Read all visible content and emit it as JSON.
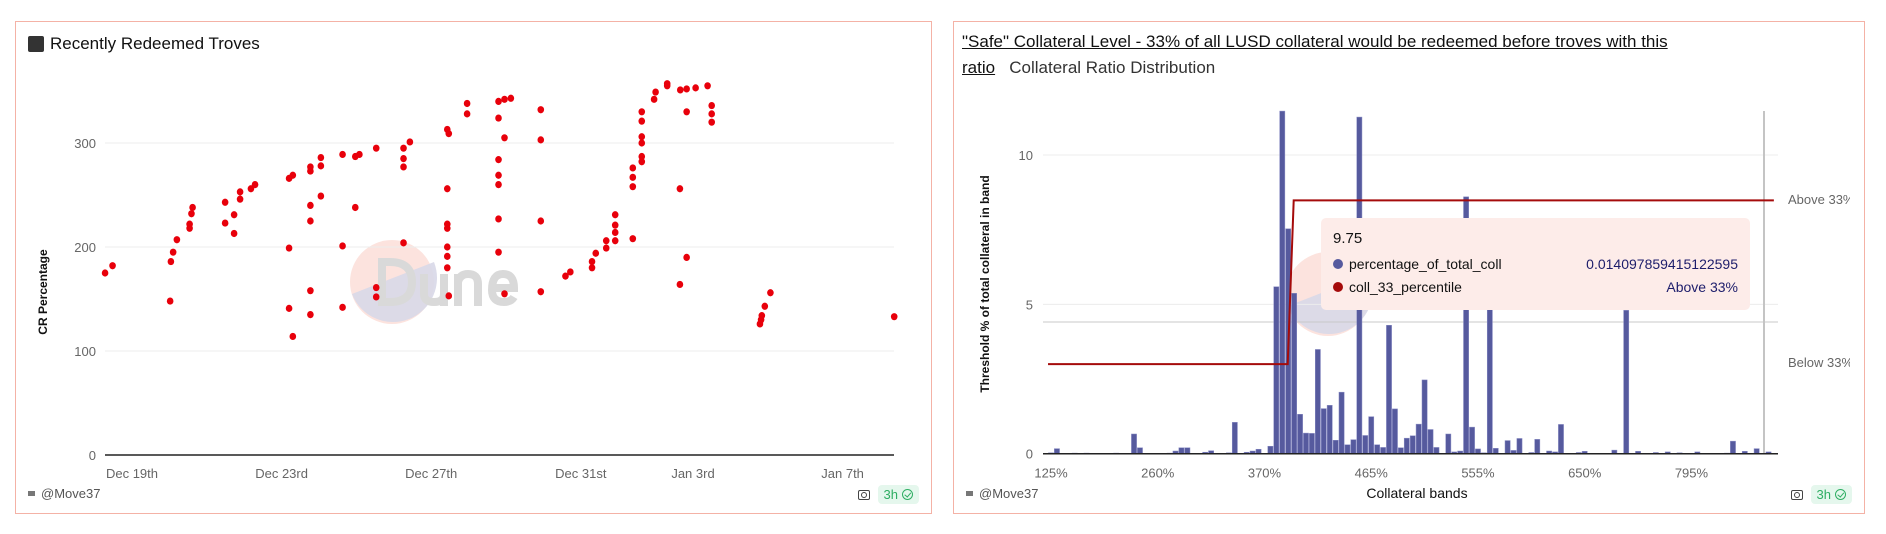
{
  "colors": {
    "dots": "#e8000b",
    "bars": "#565a9e",
    "step_line": "#a50b0b",
    "border": "#f4b2a6",
    "badge_bg": "#e5f7ed",
    "badge_text": "#2fae63"
  },
  "left_panel": {
    "title": "Recently Redeemed Troves",
    "title_icon": "money-emoji-icon",
    "footer_user": "@Move37",
    "freshness": "3h"
  },
  "right_panel": {
    "title_link": "\"Safe\" Collateral Level - 33% of all LUSD collateral would be redeemed before troves with this ratio",
    "title_rest": "Collateral Ratio Distribution",
    "footer_user": "@Move37",
    "freshness": "3h",
    "tooltip": {
      "header": "9.75",
      "rows": [
        {
          "name": "percentage_of_total_coll",
          "value": "0.014097859415122595",
          "color": "#565a9e"
        },
        {
          "name": "coll_33_percentile",
          "value": "Above 33%",
          "color": "#a50b0b"
        }
      ]
    }
  },
  "chart_data": [
    {
      "type": "scatter",
      "title": "Recently Redeemed Troves",
      "xlabel": "",
      "ylabel": "CR Percentage",
      "x_unit": "days since Dec 19th",
      "ylim": [
        0,
        360
      ],
      "yticks": [
        "0",
        "100",
        "200",
        "300"
      ],
      "ytick_values": [
        0,
        100,
        200,
        300
      ],
      "xticks": [
        {
          "day": 0,
          "label": "Dec 19th"
        },
        {
          "day": 4,
          "label": "Dec 23rd"
        },
        {
          "day": 8,
          "label": "Dec 27th"
        },
        {
          "day": 12,
          "label": "Dec 31st"
        },
        {
          "day": 15,
          "label": "Jan 3rd"
        },
        {
          "day": 19,
          "label": "Jan 7th"
        }
      ],
      "xlim": [
        -0.4,
        20.7
      ],
      "grid": true,
      "points": [
        [
          -0.72,
          175
        ],
        [
          -0.52,
          182
        ],
        [
          1.02,
          148
        ],
        [
          1.04,
          186
        ],
        [
          1.1,
          195
        ],
        [
          1.2,
          207
        ],
        [
          1.54,
          218
        ],
        [
          1.54,
          222
        ],
        [
          1.59,
          232
        ],
        [
          1.62,
          238
        ],
        [
          2.49,
          223
        ],
        [
          2.49,
          243
        ],
        [
          2.73,
          213
        ],
        [
          2.73,
          231
        ],
        [
          2.89,
          246
        ],
        [
          2.89,
          253
        ],
        [
          3.18,
          256
        ],
        [
          3.29,
          260
        ],
        [
          4.2,
          199
        ],
        [
          4.2,
          141
        ],
        [
          4.2,
          266
        ],
        [
          4.3,
          269
        ],
        [
          4.3,
          114
        ],
        [
          4.77,
          273
        ],
        [
          4.77,
          277
        ],
        [
          4.77,
          240
        ],
        [
          4.77,
          225
        ],
        [
          4.77,
          158
        ],
        [
          4.77,
          135
        ],
        [
          5.05,
          278
        ],
        [
          5.05,
          286
        ],
        [
          5.05,
          249
        ],
        [
          5.63,
          289
        ],
        [
          5.63,
          201
        ],
        [
          5.63,
          142
        ],
        [
          5.97,
          287
        ],
        [
          6.08,
          289
        ],
        [
          5.97,
          238
        ],
        [
          6.53,
          295
        ],
        [
          6.53,
          161
        ],
        [
          6.53,
          152
        ],
        [
          7.26,
          295
        ],
        [
          7.26,
          285
        ],
        [
          7.26,
          277
        ],
        [
          7.26,
          204
        ],
        [
          7.43,
          301
        ],
        [
          8.43,
          313
        ],
        [
          8.47,
          309
        ],
        [
          8.43,
          256
        ],
        [
          8.43,
          222
        ],
        [
          8.43,
          218
        ],
        [
          8.43,
          200
        ],
        [
          8.43,
          191
        ],
        [
          8.43,
          180
        ],
        [
          8.47,
          153
        ],
        [
          8.96,
          338
        ],
        [
          8.96,
          328
        ],
        [
          9.8,
          340
        ],
        [
          9.96,
          342
        ],
        [
          10.13,
          343
        ],
        [
          9.8,
          324
        ],
        [
          9.96,
          305
        ],
        [
          9.8,
          284
        ],
        [
          9.8,
          269
        ],
        [
          9.8,
          260
        ],
        [
          9.8,
          227
        ],
        [
          9.8,
          195
        ],
        [
          9.96,
          155
        ],
        [
          10.93,
          332
        ],
        [
          10.93,
          303
        ],
        [
          10.93,
          225
        ],
        [
          10.93,
          157
        ],
        [
          11.59,
          172
        ],
        [
          11.72,
          176
        ],
        [
          12.3,
          180
        ],
        [
          12.3,
          186
        ],
        [
          12.4,
          194
        ],
        [
          12.68,
          199
        ],
        [
          12.68,
          206
        ],
        [
          12.92,
          206
        ],
        [
          12.92,
          214
        ],
        [
          12.92,
          221
        ],
        [
          12.92,
          231
        ],
        [
          13.39,
          208
        ],
        [
          13.39,
          258
        ],
        [
          13.39,
          267
        ],
        [
          13.39,
          276
        ],
        [
          13.63,
          282
        ],
        [
          13.63,
          287
        ],
        [
          13.63,
          300
        ],
        [
          13.63,
          306
        ],
        [
          13.63,
          321
        ],
        [
          13.63,
          330
        ],
        [
          13.96,
          342
        ],
        [
          14.0,
          349
        ],
        [
          14.31,
          355
        ],
        [
          14.31,
          357
        ],
        [
          14.66,
          351
        ],
        [
          14.83,
          352
        ],
        [
          15.07,
          353
        ],
        [
          15.39,
          355
        ],
        [
          14.65,
          256
        ],
        [
          14.83,
          330
        ],
        [
          14.83,
          190
        ],
        [
          14.65,
          164
        ],
        [
          15.5,
          336
        ],
        [
          15.5,
          328
        ],
        [
          15.5,
          320
        ],
        [
          16.79,
          126
        ],
        [
          16.82,
          130
        ],
        [
          16.84,
          134
        ],
        [
          16.92,
          143
        ],
        [
          17.07,
          156
        ],
        [
          20.38,
          133
        ]
      ]
    },
    {
      "type": "bar",
      "title": "\"Safe\" Collateral Level - 33% of all LUSD collateral would be redeemed before troves with this ratio",
      "xlabel": "Collateral bands",
      "ylabel": "Threshold % of total collateral in band",
      "ylim": [
        0,
        12
      ],
      "yticks": [
        "0",
        "5",
        "10"
      ],
      "ytick_values": [
        0,
        5,
        10
      ],
      "reference_line": 4.41,
      "grid": true,
      "xticks": [
        {
          "index": 0,
          "label": "125%"
        },
        {
          "index": 18,
          "label": "260%"
        },
        {
          "index": 36,
          "label": "370%"
        },
        {
          "index": 54,
          "label": "465%"
        },
        {
          "index": 72,
          "label": "555%"
        },
        {
          "index": 90,
          "label": "650%"
        },
        {
          "index": 108,
          "label": "795%"
        }
      ],
      "series": [
        {
          "name": "percentage_of_total_coll",
          "values": [
            0.03,
            0.17,
            0.01,
            0.01,
            0.02,
            0.01,
            0.02,
            0.01,
            0.01,
            0.01,
            0.01,
            0.02,
            0.01,
            0.01,
            0.66,
            0.2,
            0.01,
            0.01,
            0.01,
            0.01,
            0.02,
            0.09,
            0.2,
            0.2,
            0.01,
            0.01,
            0.05,
            0.1,
            0.01,
            0.01,
            0.03,
            1.05,
            0.01,
            0.05,
            0.09,
            0.15,
            0.01,
            0.25,
            5.59,
            11.47,
            7.53,
            5.37,
            1.32,
            0.69,
            0.68,
            3.49,
            1.51,
            1.62,
            0.45,
            2.06,
            0.3,
            0.47,
            11.27,
            0.61,
            1.24,
            0.3,
            0.21,
            4.3,
            1.5,
            0.2,
            0.52,
            0.6,
            0.99,
            2.47,
            0.81,
            0.21,
            0.01,
            0.66,
            0.06,
            0.09,
            8.6,
            0.89,
            0.16,
            0.03,
            5.0,
            0.18,
            0.01,
            0.44,
            0.11,
            0.51,
            0.01,
            0.04,
            0.48,
            0.01,
            0.09,
            0.06,
            0.98,
            0.01,
            0.01,
            0.04,
            0.08,
            0.01,
            0.01,
            0.01,
            0.01,
            0.12,
            0.01,
            4.8,
            0.01,
            0.08,
            0.01,
            0.01,
            0.04,
            0.01,
            0.06,
            0.01,
            0.03,
            0.01,
            0.01,
            0.06,
            0.01,
            0.01,
            0.01,
            0.01,
            0.02,
            0.42,
            0.01,
            0.08,
            0.01,
            0.17,
            0.01,
            0.06
          ]
        },
        {
          "name": "coll_33_percentile",
          "type": "step",
          "step_after_index": 40,
          "levels": [
            "Below 33%",
            "Above 33%"
          ],
          "level_values": [
            3.0,
            8.48
          ]
        }
      ],
      "right_axis_labels": [
        "Above 33%",
        "Below 33%"
      ]
    }
  ]
}
